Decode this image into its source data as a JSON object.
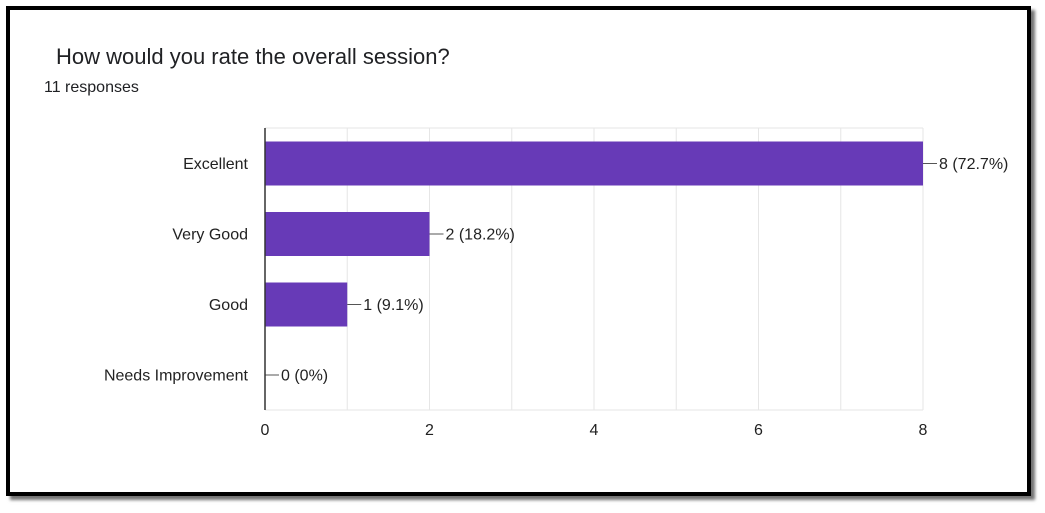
{
  "header": {
    "title": "How would you rate the overall session?",
    "responses": "11 responses"
  },
  "colors": {
    "bar": "#673ab7",
    "grid": "#e6e6e6",
    "axis": "#333333"
  },
  "chart_data": {
    "type": "bar",
    "orientation": "horizontal",
    "categories": [
      "Excellent",
      "Very Good",
      "Good",
      "Needs Improvement"
    ],
    "values": [
      8,
      2,
      1,
      0
    ],
    "data_labels": [
      "8 (72.7%)",
      "2 (18.2%)",
      "1 (9.1%)",
      "0 (0%)"
    ],
    "xlim": [
      0,
      8
    ],
    "xticks": [
      "0",
      "2",
      "4",
      "6",
      "8"
    ],
    "grid": true,
    "legend": "none"
  }
}
